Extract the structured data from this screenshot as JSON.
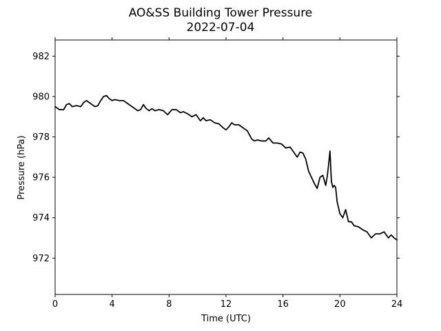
{
  "chart_data": {
    "type": "line",
    "title": "AO&SS Building Tower Pressure",
    "subtitle": "2022-07-04",
    "xlabel": "Time (UTC)",
    "ylabel": "Pressure (hPa)",
    "xlim": [
      0,
      24
    ],
    "ylim": [
      970.2,
      982.8
    ],
    "xticks": [
      0,
      4,
      8,
      12,
      16,
      20,
      24
    ],
    "yticks": [
      972,
      974,
      976,
      978,
      980,
      982
    ],
    "grid": false,
    "legend": "none",
    "line_color": "#000000",
    "series": [
      {
        "x": [
          0.0,
          0.3,
          0.6,
          0.8,
          1.0,
          1.2,
          1.5,
          1.8,
          2.0,
          2.2,
          2.4,
          2.6,
          2.8,
          3.0,
          3.2,
          3.4,
          3.6,
          3.8,
          4.0,
          4.2,
          4.5,
          4.8,
          5.0,
          5.2,
          5.5,
          5.8,
          6.0,
          6.2,
          6.4,
          6.6,
          6.8,
          7.0,
          7.3,
          7.6,
          7.9,
          8.2,
          8.5,
          8.8,
          9.0,
          9.3,
          9.6,
          9.9,
          10.2,
          10.4,
          10.6,
          10.9,
          11.2,
          11.5,
          11.8,
          12.0,
          12.2,
          12.4,
          12.6,
          12.9,
          13.2,
          13.5,
          13.8,
          14.0,
          14.2,
          14.5,
          14.8,
          15.0,
          15.3,
          15.6,
          15.9,
          16.2,
          16.5,
          16.8,
          17.0,
          17.2,
          17.4,
          17.6,
          17.8,
          18.0,
          18.2,
          18.4,
          18.6,
          18.8,
          19.0,
          19.1,
          19.2,
          19.3,
          19.4,
          19.5,
          19.6,
          19.7,
          19.8,
          19.9,
          20.0,
          20.2,
          20.4,
          20.6,
          20.8,
          21.0,
          21.3,
          21.6,
          21.9,
          22.2,
          22.5,
          22.8,
          23.1,
          23.4,
          23.6,
          23.8,
          24.0
        ],
        "y": [
          979.5,
          979.35,
          979.35,
          979.6,
          979.65,
          979.5,
          979.55,
          979.5,
          979.7,
          979.8,
          979.7,
          979.6,
          979.5,
          979.55,
          979.8,
          980.0,
          980.05,
          979.9,
          979.8,
          979.85,
          979.8,
          979.8,
          979.7,
          979.6,
          979.45,
          979.3,
          979.35,
          979.6,
          979.4,
          979.3,
          979.4,
          979.3,
          979.35,
          979.3,
          979.1,
          979.35,
          979.35,
          979.2,
          979.25,
          979.15,
          979.0,
          979.1,
          978.8,
          978.95,
          978.8,
          978.85,
          978.7,
          978.65,
          978.45,
          978.35,
          978.5,
          978.7,
          978.6,
          978.6,
          978.45,
          978.3,
          977.9,
          977.8,
          977.85,
          977.8,
          977.8,
          977.95,
          977.7,
          977.7,
          977.65,
          977.45,
          977.5,
          977.2,
          977.0,
          977.25,
          977.2,
          976.9,
          976.3,
          976.0,
          975.7,
          975.45,
          976.0,
          976.1,
          975.6,
          976.0,
          976.6,
          977.3,
          975.8,
          975.5,
          975.6,
          975.5,
          974.8,
          974.5,
          974.2,
          974.0,
          974.4,
          973.8,
          973.8,
          973.6,
          973.55,
          973.4,
          973.3,
          973.0,
          973.2,
          973.2,
          973.3,
          973.0,
          973.15,
          973.0,
          972.9
        ]
      }
    ]
  }
}
